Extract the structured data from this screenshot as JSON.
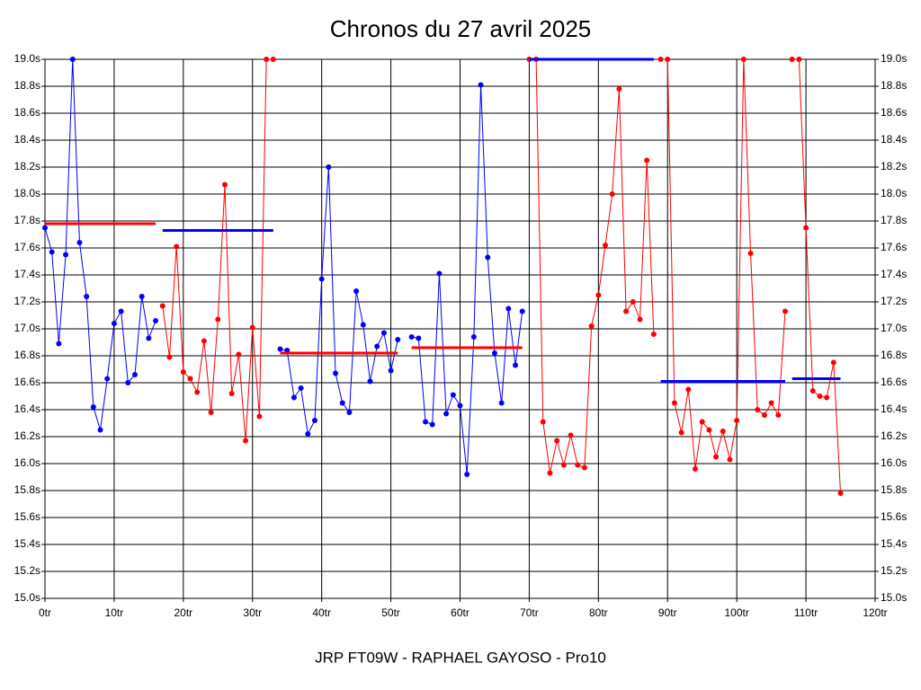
{
  "chart_data": {
    "type": "line",
    "title": "Chronos du 27 avril 2025",
    "xlabel": "JRP FT09W - RAPHAEL GAYOSO - Pro10",
    "xlim": [
      0,
      120
    ],
    "ylim": [
      15.0,
      19.0
    ],
    "grid": true,
    "xticks": [
      {
        "value": 0,
        "label": "0tr"
      },
      {
        "value": 10,
        "label": "10tr"
      },
      {
        "value": 20,
        "label": "20tr"
      },
      {
        "value": 30,
        "label": "30tr"
      },
      {
        "value": 40,
        "label": "40tr"
      },
      {
        "value": 50,
        "label": "50tr"
      },
      {
        "value": 60,
        "label": "60tr"
      },
      {
        "value": 70,
        "label": "70tr"
      },
      {
        "value": 80,
        "label": "80tr"
      },
      {
        "value": 90,
        "label": "90tr"
      },
      {
        "value": 100,
        "label": "100tr"
      },
      {
        "value": 110,
        "label": "110tr"
      },
      {
        "value": 120,
        "label": "120tr"
      }
    ],
    "yticks": [
      {
        "value": 15.0,
        "label": "15.0s"
      },
      {
        "value": 15.2,
        "label": "15.2s"
      },
      {
        "value": 15.4,
        "label": "15.4s"
      },
      {
        "value": 15.6,
        "label": "15.6s"
      },
      {
        "value": 15.8,
        "label": "15.8s"
      },
      {
        "value": 16.0,
        "label": "16.0s"
      },
      {
        "value": 16.2,
        "label": "16.2s"
      },
      {
        "value": 16.4,
        "label": "16.4s"
      },
      {
        "value": 16.6,
        "label": "16.6s"
      },
      {
        "value": 16.8,
        "label": "16.8s"
      },
      {
        "value": 17.0,
        "label": "17.0s"
      },
      {
        "value": 17.2,
        "label": "17.2s"
      },
      {
        "value": 17.4,
        "label": "17.4s"
      },
      {
        "value": 17.6,
        "label": "17.6s"
      },
      {
        "value": 17.8,
        "label": "17.8s"
      },
      {
        "value": 18.0,
        "label": "18.0s"
      },
      {
        "value": 18.2,
        "label": "18.2s"
      },
      {
        "value": 18.4,
        "label": "18.4s"
      },
      {
        "value": 18.6,
        "label": "18.6s"
      },
      {
        "value": 18.8,
        "label": "18.8s"
      },
      {
        "value": 19.0,
        "label": "19.0s"
      }
    ],
    "series": [
      {
        "color": "#0000ff",
        "mean": 17.78,
        "mean_color": "#ff0000",
        "x": [
          0,
          1,
          2,
          3,
          4,
          5,
          6,
          7,
          8,
          9,
          10,
          11,
          12,
          13,
          14,
          15,
          16
        ],
        "values": [
          17.75,
          17.57,
          16.89,
          17.55,
          19.0,
          17.64,
          17.24,
          16.42,
          16.25,
          16.63,
          17.04,
          17.13,
          16.6,
          16.66,
          17.24,
          16.93,
          17.06
        ]
      },
      {
        "color": "#ff0000",
        "mean": 17.73,
        "mean_color": "#0000ff",
        "x": [
          17,
          18,
          19,
          20,
          21,
          22,
          23,
          24,
          25,
          26,
          27,
          28,
          29,
          30,
          31,
          32,
          33
        ],
        "values": [
          17.17,
          16.79,
          17.61,
          16.68,
          16.63,
          16.53,
          16.91,
          16.38,
          17.07,
          18.07,
          16.52,
          16.81,
          16.17,
          17.01,
          16.35,
          19.0,
          19.0
        ]
      },
      {
        "color": "#0000ff",
        "mean": 16.82,
        "mean_color": "#ff0000",
        "x": [
          34,
          35,
          36,
          37,
          38,
          39,
          40,
          41,
          42,
          43,
          44,
          45,
          46,
          47,
          48,
          49,
          50,
          51
        ],
        "values": [
          16.85,
          16.84,
          16.49,
          16.56,
          16.22,
          16.32,
          17.37,
          18.2,
          16.67,
          16.45,
          16.38,
          17.28,
          17.03,
          16.61,
          16.87,
          16.97,
          16.69,
          16.92
        ]
      },
      {
        "color": "#0000ff",
        "mean": 16.86,
        "mean_color": "#ff0000",
        "x": [
          53,
          54,
          55,
          56,
          57,
          58,
          59,
          60,
          61,
          62,
          63,
          64,
          65,
          66,
          67,
          68,
          69
        ],
        "values": [
          16.94,
          16.93,
          16.31,
          16.29,
          17.41,
          16.37,
          16.51,
          16.43,
          15.92,
          16.94,
          18.81,
          17.53,
          16.82,
          16.45,
          17.15,
          16.73,
          17.13
        ]
      },
      {
        "color": "#ff0000",
        "mean": 19.0,
        "mean_color": "#0000ff",
        "x": [
          70,
          71,
          72,
          73,
          74,
          75,
          76,
          77,
          78,
          79,
          80,
          81,
          82,
          83,
          84,
          85,
          86,
          87,
          88
        ],
        "values": [
          19.0,
          19.0,
          16.31,
          15.93,
          16.17,
          15.99,
          16.21,
          15.99,
          15.97,
          17.02,
          17.25,
          17.62,
          18.0,
          18.78,
          17.13,
          17.2,
          17.07,
          18.25,
          16.96
        ]
      },
      {
        "color": "#ff0000",
        "mean": 16.61,
        "mean_color": "#0000ff",
        "x": [
          89,
          90,
          91,
          92,
          93,
          94,
          95,
          96,
          97,
          98,
          99,
          100,
          101,
          102,
          103,
          104,
          105,
          106,
          107
        ],
        "values": [
          19.0,
          19.0,
          16.45,
          16.23,
          16.55,
          15.96,
          16.31,
          16.25,
          16.05,
          16.24,
          16.03,
          16.32,
          19.0,
          17.56,
          16.4,
          16.36,
          16.45,
          16.36,
          17.13
        ]
      },
      {
        "color": "#ff0000",
        "mean": 16.63,
        "mean_color": "#0000ff",
        "x": [
          108,
          109,
          110,
          111,
          112,
          113,
          114,
          115
        ],
        "values": [
          19.0,
          19.0,
          17.75,
          16.54,
          16.5,
          16.49,
          16.75,
          15.78
        ]
      }
    ]
  }
}
